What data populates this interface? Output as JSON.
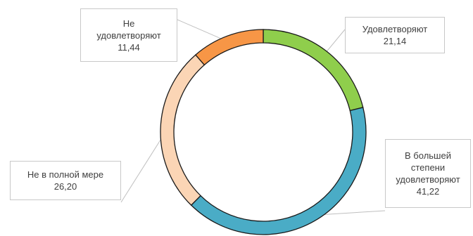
{
  "chart_data": {
    "type": "pie",
    "variant": "doughnut",
    "categories": [
      "Удовлетворяют",
      "В большей степени удовлетворяют",
      "Не в полной мере",
      "Не удовлетворяют"
    ],
    "values": [
      21.14,
      41.22,
      26.2,
      11.44
    ],
    "value_labels": [
      "21,14",
      "41,22",
      "26,20",
      "11,44"
    ],
    "label_lines": [
      [
        "Удовлетворяют"
      ],
      [
        "В большей",
        "степени",
        "удовлетворяют"
      ],
      [
        "Не в полной мере"
      ],
      [
        "Не",
        "удовлетворяют"
      ]
    ],
    "colors": [
      "#8fce4c",
      "#4aacc6",
      "#fbd5b5",
      "#f79646"
    ],
    "start_angle_deg": 0,
    "direction": "clockwise",
    "legend": "none",
    "title": ""
  }
}
